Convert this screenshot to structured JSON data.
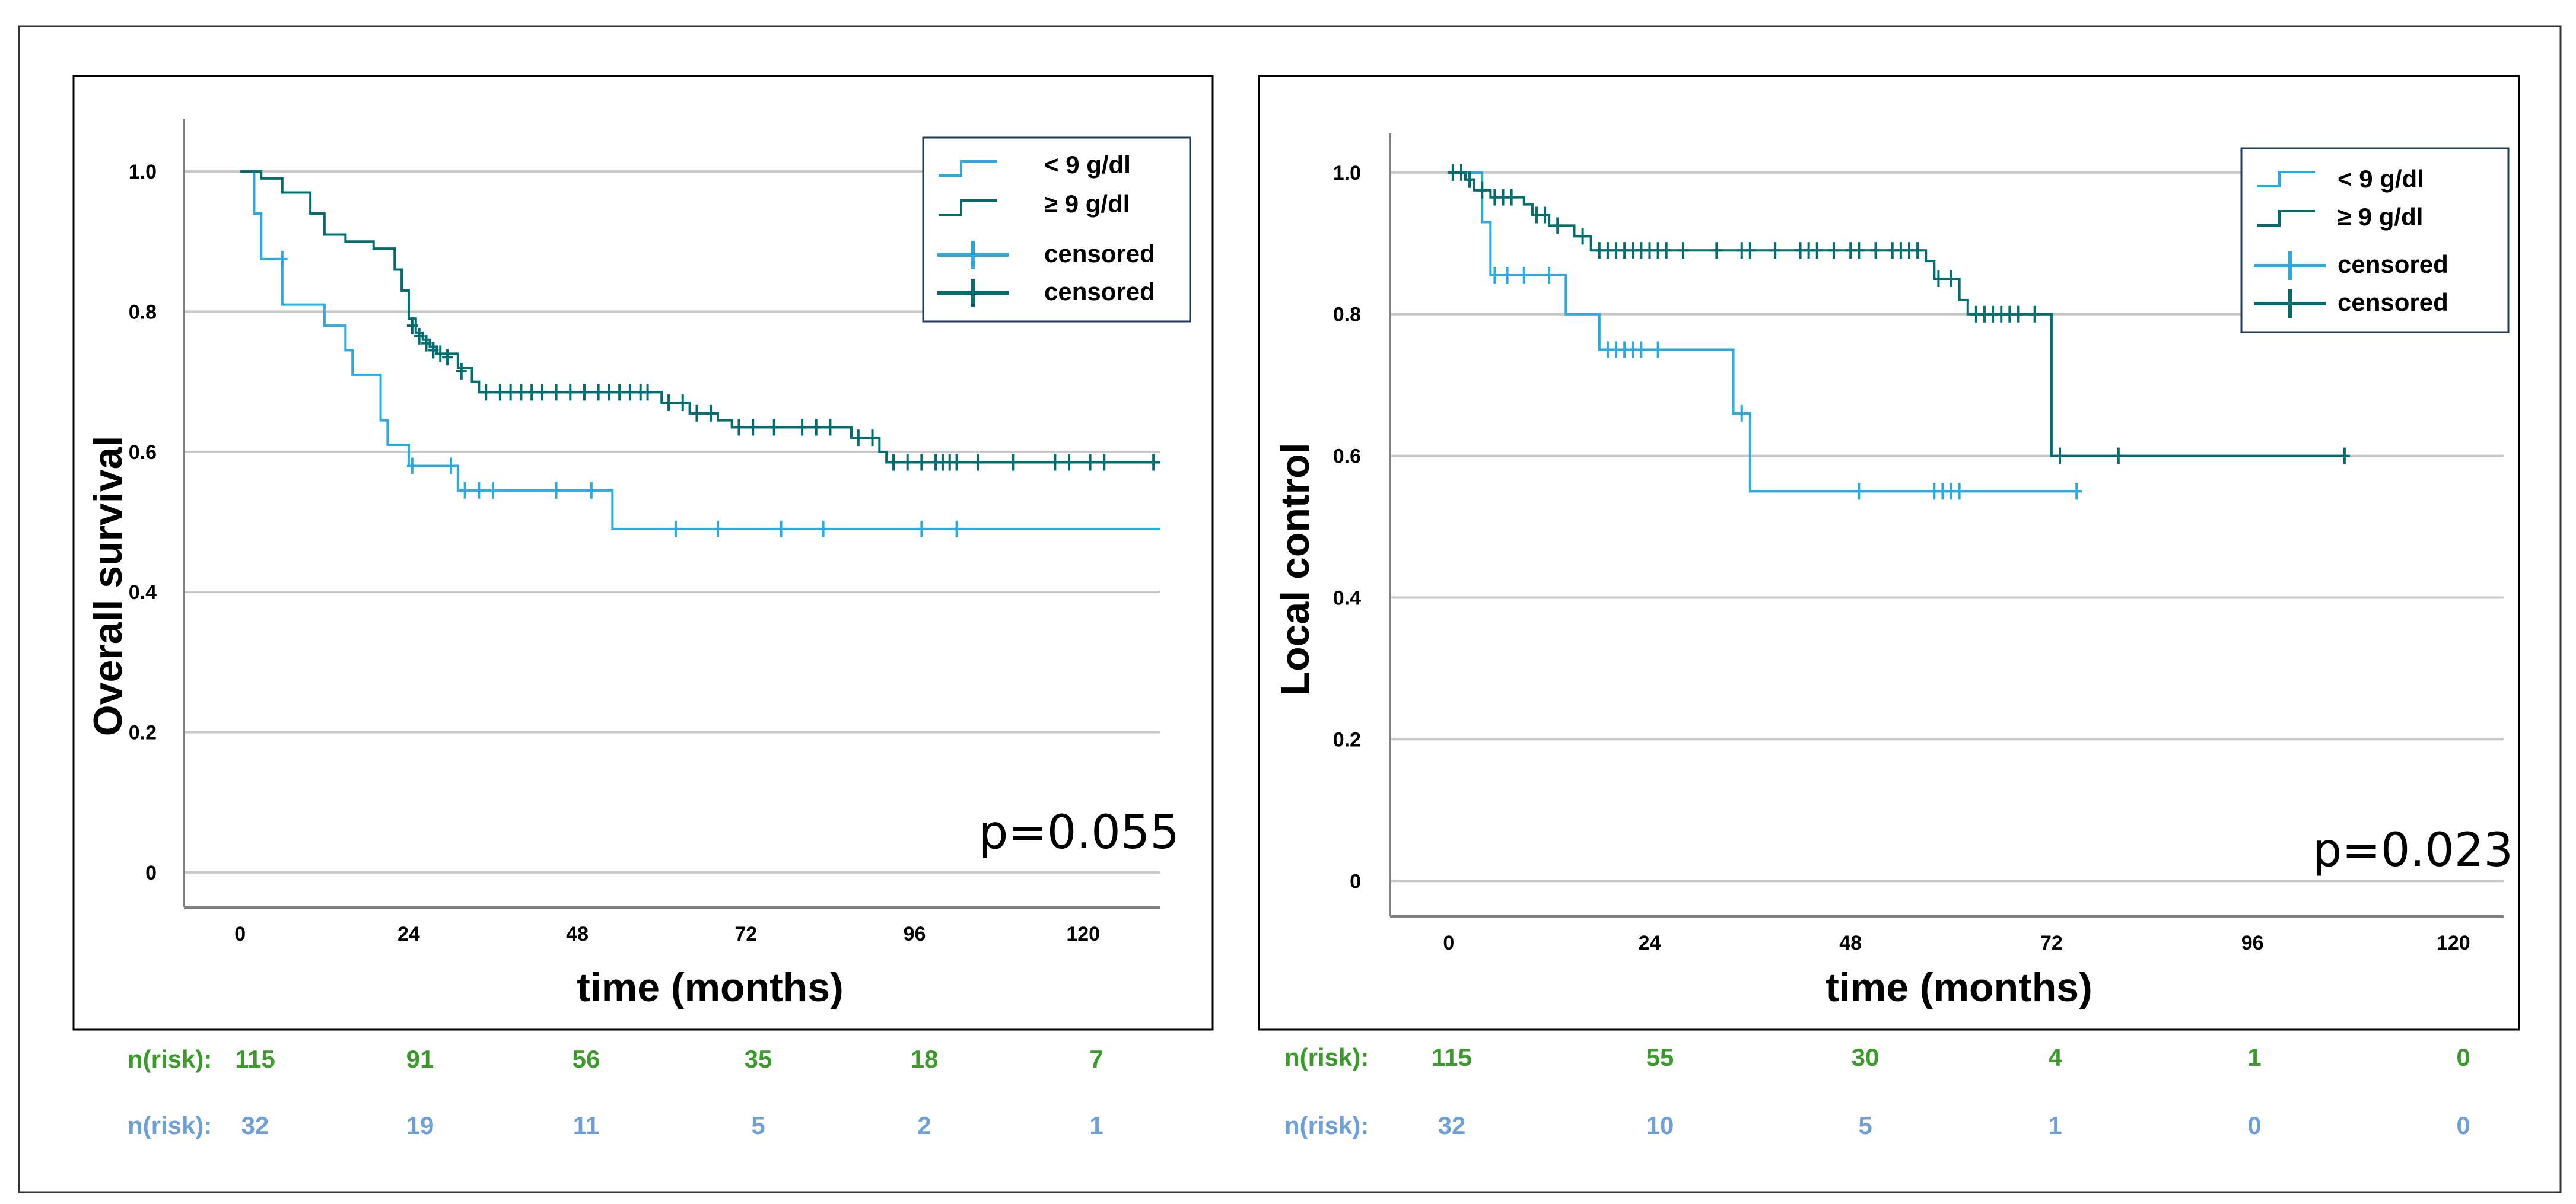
{
  "colors": {
    "low_hb": "#29abe2",
    "high_hb": "#006e6e",
    "risk_high": "#3a9a2a",
    "risk_low": "#6f9fd8",
    "grid": "#c8c8c8",
    "axis": "#808080",
    "frame": "#000000"
  },
  "legend": {
    "low_label": "< 9 g/dl",
    "high_label": "≥ 9 g/dl",
    "censored_low": "censored",
    "censored_high": "censored"
  },
  "risk_table": {
    "label": "n(risk):"
  },
  "chart_data": [
    {
      "type": "line",
      "subtype": "kaplan-meier",
      "ylabel": "Overall survival",
      "xlabel": "time (months)",
      "x_ticks": [
        0,
        24,
        48,
        72,
        96,
        120
      ],
      "y_ticks": [
        0,
        0.2,
        0.4,
        0.6,
        0.8,
        1.0
      ],
      "y_tick_labels": [
        "0",
        "0.2",
        "0.4",
        "0.6",
        "0.8",
        "1.0"
      ],
      "xlim": [
        -8,
        131
      ],
      "ylim": [
        -0.05,
        1.05
      ],
      "p_value": "p=0.055",
      "legend_position": "top-right",
      "series": [
        {
          "name": "≥ 9 g/dl",
          "steps": [
            [
              0,
              1.0
            ],
            [
              3,
              0.99
            ],
            [
              6,
              0.97
            ],
            [
              10,
              0.94
            ],
            [
              12,
              0.91
            ],
            [
              15,
              0.9
            ],
            [
              19,
              0.89
            ],
            [
              22,
              0.86
            ],
            [
              23,
              0.83
            ],
            [
              24,
              0.79
            ],
            [
              25,
              0.77
            ],
            [
              26,
              0.76
            ],
            [
              27,
              0.75
            ],
            [
              28,
              0.74
            ],
            [
              31,
              0.72
            ],
            [
              33,
              0.7
            ],
            [
              34,
              0.685
            ],
            [
              60,
              0.67
            ],
            [
              64,
              0.655
            ],
            [
              68,
              0.645
            ],
            [
              70,
              0.635
            ],
            [
              87,
              0.62
            ],
            [
              91,
              0.6
            ],
            [
              92,
              0.585
            ],
            [
              131,
              0.585
            ]
          ],
          "censored": [
            [
              24.5,
              0.78
            ],
            [
              25.5,
              0.765
            ],
            [
              26.5,
              0.755
            ],
            [
              27.5,
              0.745
            ],
            [
              28.5,
              0.74
            ],
            [
              29.5,
              0.735
            ],
            [
              31.5,
              0.715
            ],
            [
              35,
              0.685
            ],
            [
              37,
              0.685
            ],
            [
              38.5,
              0.685
            ],
            [
              40,
              0.685
            ],
            [
              41.5,
              0.685
            ],
            [
              43,
              0.685
            ],
            [
              45,
              0.685
            ],
            [
              47,
              0.685
            ],
            [
              49,
              0.685
            ],
            [
              51,
              0.685
            ],
            [
              52.5,
              0.685
            ],
            [
              54,
              0.685
            ],
            [
              55.5,
              0.685
            ],
            [
              57,
              0.685
            ],
            [
              58,
              0.685
            ],
            [
              61,
              0.67
            ],
            [
              63,
              0.67
            ],
            [
              65,
              0.655
            ],
            [
              67,
              0.655
            ],
            [
              71,
              0.635
            ],
            [
              73,
              0.635
            ],
            [
              76,
              0.635
            ],
            [
              80,
              0.635
            ],
            [
              82,
              0.635
            ],
            [
              84,
              0.635
            ],
            [
              88,
              0.62
            ],
            [
              90,
              0.62
            ],
            [
              93,
              0.585
            ],
            [
              95,
              0.585
            ],
            [
              97,
              0.585
            ],
            [
              99,
              0.585
            ],
            [
              100,
              0.585
            ],
            [
              101,
              0.585
            ],
            [
              102,
              0.585
            ],
            [
              105,
              0.585
            ],
            [
              110,
              0.585
            ],
            [
              116,
              0.585
            ],
            [
              118,
              0.585
            ],
            [
              121,
              0.585
            ],
            [
              123,
              0.585
            ],
            [
              130,
              0.585
            ]
          ]
        },
        {
          "name": "< 9 g/dl",
          "steps": [
            [
              0,
              1.0
            ],
            [
              2,
              0.94
            ],
            [
              3,
              0.875
            ],
            [
              6,
              0.81
            ],
            [
              12,
              0.78
            ],
            [
              15,
              0.745
            ],
            [
              16,
              0.71
            ],
            [
              20,
              0.645
            ],
            [
              21,
              0.61
            ],
            [
              24,
              0.58
            ],
            [
              31,
              0.545
            ],
            [
              53,
              0.49
            ],
            [
              131,
              0.49
            ]
          ],
          "censored": [
            [
              6,
              0.875
            ],
            [
              24.5,
              0.58
            ],
            [
              30,
              0.58
            ],
            [
              32,
              0.545
            ],
            [
              34,
              0.545
            ],
            [
              36,
              0.545
            ],
            [
              45,
              0.545
            ],
            [
              50,
              0.545
            ],
            [
              62,
              0.49
            ],
            [
              68,
              0.49
            ],
            [
              77,
              0.49
            ],
            [
              83,
              0.49
            ],
            [
              97,
              0.49
            ],
            [
              102,
              0.49
            ]
          ]
        }
      ],
      "risk_high": [
        "115",
        "91",
        "56",
        "35",
        "18",
        "7"
      ],
      "risk_low": [
        "32",
        "19",
        "11",
        "5",
        "2",
        "1"
      ]
    },
    {
      "type": "line",
      "subtype": "kaplan-meier",
      "ylabel": "Local control",
      "xlabel": "time (months)",
      "x_ticks": [
        0,
        24,
        48,
        72,
        96,
        120
      ],
      "y_ticks": [
        0,
        0.2,
        0.4,
        0.6,
        0.8,
        1.0
      ],
      "y_tick_labels": [
        "0",
        "0.2",
        "0.4",
        "0.6",
        "0.8",
        "1.0"
      ],
      "xlim": [
        -7,
        126
      ],
      "ylim": [
        -0.05,
        1.03
      ],
      "p_value": "p=0.023",
      "legend_position": "top-right",
      "series": [
        {
          "name": "≥ 9 g/dl",
          "steps": [
            [
              0,
              1.0
            ],
            [
              2,
              0.99
            ],
            [
              3,
              0.975
            ],
            [
              5,
              0.965
            ],
            [
              9,
              0.955
            ],
            [
              10,
              0.94
            ],
            [
              12,
              0.925
            ],
            [
              15,
              0.91
            ],
            [
              17,
              0.89
            ],
            [
              57,
              0.875
            ],
            [
              58,
              0.85
            ],
            [
              61,
              0.82
            ],
            [
              62,
              0.8
            ],
            [
              72,
              0.6
            ],
            [
              107,
              0.6
            ]
          ],
          "censored": [
            [
              0.5,
              1.0
            ],
            [
              1.5,
              1.0
            ],
            [
              2.5,
              0.99
            ],
            [
              4,
              0.975
            ],
            [
              5.5,
              0.965
            ],
            [
              6.5,
              0.965
            ],
            [
              7.5,
              0.965
            ],
            [
              10.5,
              0.94
            ],
            [
              11.5,
              0.94
            ],
            [
              13,
              0.925
            ],
            [
              16,
              0.91
            ],
            [
              18,
              0.89
            ],
            [
              19,
              0.89
            ],
            [
              20,
              0.89
            ],
            [
              21,
              0.89
            ],
            [
              22,
              0.89
            ],
            [
              23,
              0.89
            ],
            [
              24,
              0.89
            ],
            [
              25,
              0.89
            ],
            [
              26,
              0.89
            ],
            [
              28,
              0.89
            ],
            [
              32,
              0.89
            ],
            [
              35,
              0.89
            ],
            [
              36,
              0.89
            ],
            [
              39,
              0.89
            ],
            [
              42,
              0.89
            ],
            [
              43,
              0.89
            ],
            [
              44,
              0.89
            ],
            [
              46,
              0.89
            ],
            [
              48,
              0.89
            ],
            [
              49,
              0.89
            ],
            [
              51,
              0.89
            ],
            [
              53,
              0.89
            ],
            [
              54,
              0.89
            ],
            [
              55,
              0.89
            ],
            [
              56,
              0.89
            ],
            [
              58.5,
              0.85
            ],
            [
              60,
              0.85
            ],
            [
              63,
              0.8
            ],
            [
              64,
              0.8
            ],
            [
              65,
              0.8
            ],
            [
              66,
              0.8
            ],
            [
              67,
              0.8
            ],
            [
              68,
              0.8
            ],
            [
              70,
              0.8
            ],
            [
              73,
              0.6
            ],
            [
              80,
              0.6
            ],
            [
              107,
              0.6
            ]
          ]
        },
        {
          "name": "< 9 g/dl",
          "steps": [
            [
              0,
              1.0
            ],
            [
              4,
              0.93
            ],
            [
              5,
              0.855
            ],
            [
              14,
              0.8
            ],
            [
              18,
              0.75
            ],
            [
              34,
              0.66
            ],
            [
              36,
              0.55
            ],
            [
              75,
              0.55
            ]
          ],
          "censored": [
            [
              5.5,
              0.855
            ],
            [
              7,
              0.855
            ],
            [
              9,
              0.855
            ],
            [
              12,
              0.855
            ],
            [
              19,
              0.75
            ],
            [
              20,
              0.75
            ],
            [
              21,
              0.75
            ],
            [
              22,
              0.75
            ],
            [
              23,
              0.75
            ],
            [
              25,
              0.75
            ],
            [
              35,
              0.66
            ],
            [
              49,
              0.55
            ],
            [
              58,
              0.55
            ],
            [
              59,
              0.55
            ],
            [
              60,
              0.55
            ],
            [
              61,
              0.55
            ],
            [
              75,
              0.55
            ]
          ]
        }
      ],
      "risk_high": [
        "115",
        "55",
        "30",
        "4",
        "1",
        "0"
      ],
      "risk_low": [
        "32",
        "10",
        "5",
        "1",
        "0",
        "0"
      ]
    }
  ]
}
